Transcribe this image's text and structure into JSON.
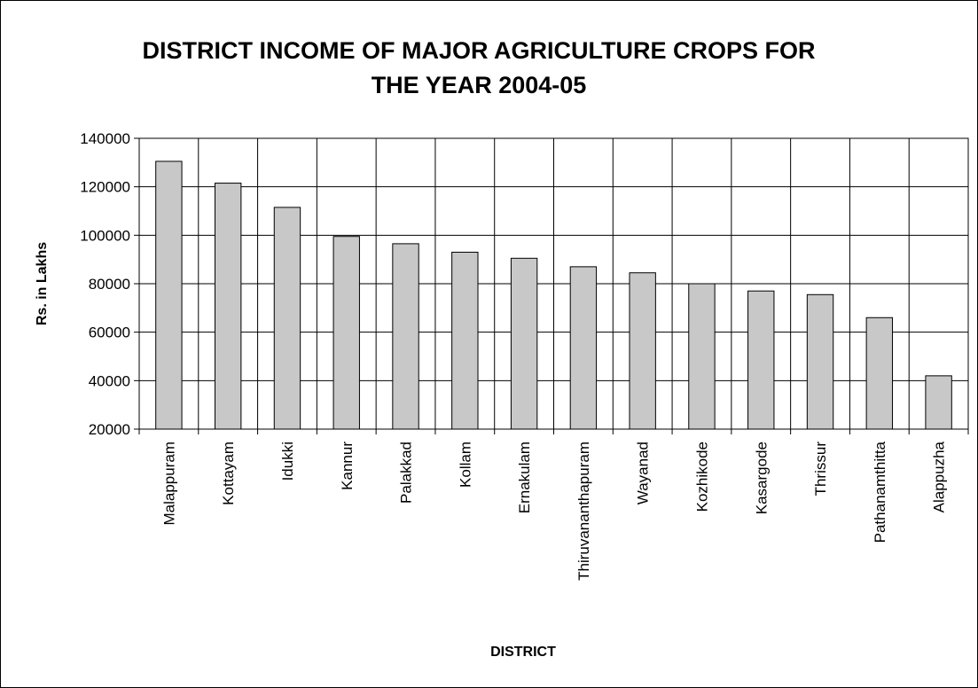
{
  "chart_data": {
    "type": "bar",
    "title_line1": "DISTRICT INCOME OF MAJOR AGRICULTURE CROPS FOR",
    "title_line2": "THE YEAR 2004-05",
    "xlabel": "DISTRICT",
    "ylabel": "Rs. in Lakhs",
    "ylim": [
      20000,
      140000
    ],
    "yticks": [
      20000,
      40000,
      60000,
      80000,
      100000,
      120000,
      140000
    ],
    "grid": true,
    "bar_color": "#c8c8c8",
    "categories": [
      "Malappuram",
      "Kottayam",
      "Idukki",
      "Kannur",
      "Palakkad",
      "Kollam",
      "Ernakulam",
      "Thiruvananthapuram",
      "Wayanad",
      "Kozhikode",
      "Kasargode",
      "Thrissur",
      "Pathanamthitta",
      "Alappuzha"
    ],
    "values": [
      130500,
      121500,
      111500,
      99500,
      96500,
      93000,
      90500,
      87000,
      84500,
      80000,
      77000,
      75500,
      66000,
      42000
    ]
  }
}
